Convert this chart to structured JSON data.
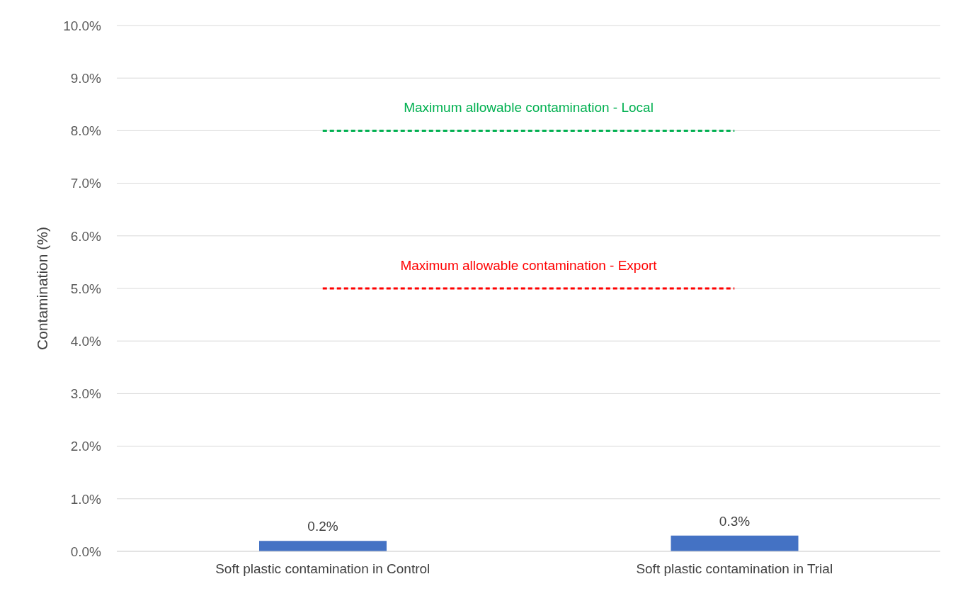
{
  "chart_data": {
    "type": "bar",
    "ylabel": "Contamination (%)",
    "categories": [
      "Soft plastic contamination in Control",
      "Soft plastic contamination in Trial"
    ],
    "values": [
      0.2,
      0.3
    ],
    "color": "#4472c4",
    "value_labels": [
      "0.2%",
      "0.3%"
    ],
    "ylim": [
      0,
      10
    ],
    "yticks": [
      {
        "value": 0,
        "label": "0.0%"
      },
      {
        "value": 1,
        "label": "1.0%"
      },
      {
        "value": 2,
        "label": "2.0%"
      },
      {
        "value": 3,
        "label": "3.0%"
      },
      {
        "value": 4,
        "label": "4.0%"
      },
      {
        "value": 5,
        "label": "5.0%"
      },
      {
        "value": 6,
        "label": "6.0%"
      },
      {
        "value": 7,
        "label": "7.0%"
      },
      {
        "value": 8,
        "label": "8.0%"
      },
      {
        "value": 9,
        "label": "9.0%"
      },
      {
        "value": 10,
        "label": "10.0%"
      }
    ],
    "grid": "y",
    "ref_lines": [
      {
        "axis": "y",
        "value": 8,
        "label": "Maximum allowable contamination - Local",
        "color": "#00b050",
        "line_style": "dashed"
      },
      {
        "axis": "y",
        "value": 5,
        "label": "Maximum allowable contamination - Export",
        "color": "#ff0000",
        "line_style": "dashed"
      }
    ]
  }
}
